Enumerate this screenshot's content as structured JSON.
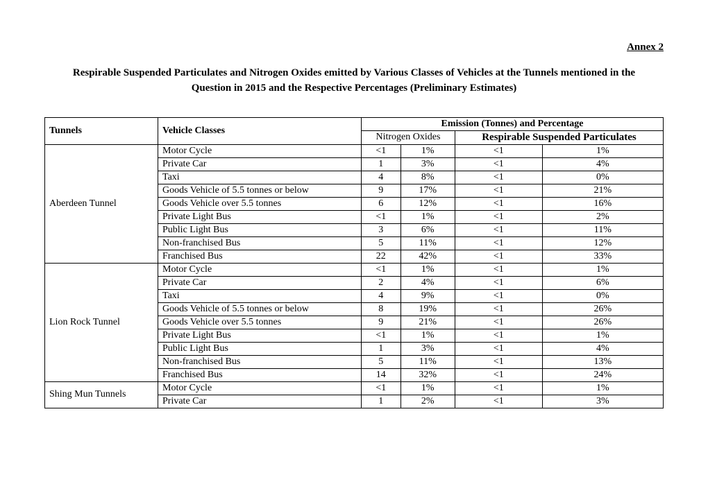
{
  "annex_label": "Annex 2",
  "title": "Respirable Suspended Particulates and Nitrogen Oxides emitted by Various Classes of Vehicles at the Tunnels mentioned in the Question in 2015 and the Respective Percentages (Preliminary Estimates)",
  "headers": {
    "tunnels": "Tunnels",
    "vehicle_classes": "Vehicle Classes",
    "emission_group": "Emission (Tonnes) and Percentage",
    "nox": "Nitrogen Oxides",
    "rsp": "Respirable Suspended Particulates"
  },
  "tunnels": [
    {
      "name": "Aberdeen Tunnel",
      "rows": [
        {
          "class": "Motor Cycle",
          "nox_val": "<1",
          "nox_pct": "1%",
          "rsp_val": "<1",
          "rsp_pct": "1%"
        },
        {
          "class": "Private Car",
          "nox_val": "1",
          "nox_pct": "3%",
          "rsp_val": "<1",
          "rsp_pct": "4%"
        },
        {
          "class": "Taxi",
          "nox_val": "4",
          "nox_pct": "8%",
          "rsp_val": "<1",
          "rsp_pct": "0%"
        },
        {
          "class": "Goods Vehicle of 5.5 tonnes or below",
          "nox_val": "9",
          "nox_pct": "17%",
          "rsp_val": "<1",
          "rsp_pct": "21%"
        },
        {
          "class": "Goods Vehicle over 5.5 tonnes",
          "nox_val": "6",
          "nox_pct": "12%",
          "rsp_val": "<1",
          "rsp_pct": "16%"
        },
        {
          "class": "Private Light Bus",
          "nox_val": "<1",
          "nox_pct": "1%",
          "rsp_val": "<1",
          "rsp_pct": "2%"
        },
        {
          "class": "Public Light Bus",
          "nox_val": "3",
          "nox_pct": "6%",
          "rsp_val": "<1",
          "rsp_pct": "11%"
        },
        {
          "class": "Non-franchised Bus",
          "nox_val": "5",
          "nox_pct": "11%",
          "rsp_val": "<1",
          "rsp_pct": "12%"
        },
        {
          "class": "Franchised Bus",
          "nox_val": "22",
          "nox_pct": "42%",
          "rsp_val": "<1",
          "rsp_pct": "33%"
        }
      ]
    },
    {
      "name": "Lion Rock Tunnel",
      "rows": [
        {
          "class": "Motor Cycle",
          "nox_val": "<1",
          "nox_pct": "1%",
          "rsp_val": "<1",
          "rsp_pct": "1%"
        },
        {
          "class": "Private Car",
          "nox_val": "2",
          "nox_pct": "4%",
          "rsp_val": "<1",
          "rsp_pct": "6%"
        },
        {
          "class": "Taxi",
          "nox_val": "4",
          "nox_pct": "9%",
          "rsp_val": "<1",
          "rsp_pct": "0%"
        },
        {
          "class": "Goods Vehicle of 5.5 tonnes or below",
          "nox_val": "8",
          "nox_pct": "19%",
          "rsp_val": "<1",
          "rsp_pct": "26%"
        },
        {
          "class": "Goods Vehicle over 5.5 tonnes",
          "nox_val": "9",
          "nox_pct": "21%",
          "rsp_val": "<1",
          "rsp_pct": "26%"
        },
        {
          "class": "Private Light Bus",
          "nox_val": "<1",
          "nox_pct": "1%",
          "rsp_val": "<1",
          "rsp_pct": "1%"
        },
        {
          "class": "Public Light Bus",
          "nox_val": "1",
          "nox_pct": "3%",
          "rsp_val": "<1",
          "rsp_pct": "4%"
        },
        {
          "class": "Non-franchised Bus",
          "nox_val": "5",
          "nox_pct": "11%",
          "rsp_val": "<1",
          "rsp_pct": "13%"
        },
        {
          "class": "Franchised Bus",
          "nox_val": "14",
          "nox_pct": "32%",
          "rsp_val": "<1",
          "rsp_pct": "24%"
        }
      ]
    },
    {
      "name": "Shing Mun Tunnels",
      "rows": [
        {
          "class": "Motor Cycle",
          "nox_val": "<1",
          "nox_pct": "1%",
          "rsp_val": "<1",
          "rsp_pct": "1%"
        },
        {
          "class": "Private Car",
          "nox_val": "1",
          "nox_pct": "2%",
          "rsp_val": "<1",
          "rsp_pct": "3%"
        }
      ]
    }
  ]
}
